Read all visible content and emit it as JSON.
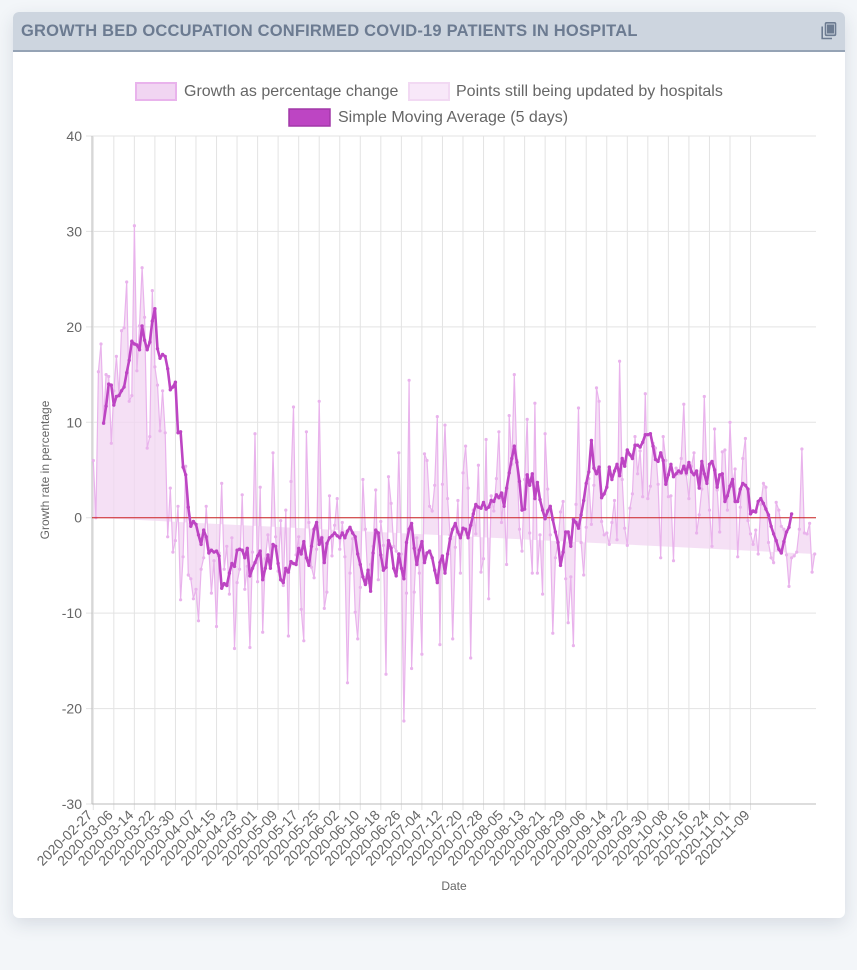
{
  "header": {
    "title": "GROWTH BED OCCUPATION CONFIRMED COVID-19 PATIENTS IN HOSPITAL",
    "copy_icon": "copy-icon"
  },
  "colors": {
    "sma": "#bd45c3",
    "growth_fill": "#f1d5f2",
    "growth_line": "#e9b3ec",
    "updating_fill": "#f8e8f9",
    "zero_line": "#cc2222",
    "grid": "#e3e3e3"
  },
  "chart_data": {
    "type": "line",
    "title": "",
    "xlabel": "Date",
    "ylabel": "Growth rate in percentage",
    "ylim": [
      -30,
      40
    ],
    "yticks": [
      -30,
      -20,
      -10,
      0,
      10,
      20,
      30,
      40
    ],
    "legend": {
      "placement": "top",
      "items": [
        "Growth as percentage change",
        "Points still being updated by hospitals",
        "Simple Moving Average (5 days)"
      ]
    },
    "x_start": "2020-02-27",
    "tick_labels": [
      "2020-02-27",
      "2020-03-06",
      "2020-03-14",
      "2020-03-22",
      "2020-03-30",
      "2020-04-07",
      "2020-04-15",
      "2020-04-23",
      "2020-05-01",
      "2020-05-09",
      "2020-05-17",
      "2020-05-25",
      "2020-06-02",
      "2020-06-10",
      "2020-06-18",
      "2020-06-26",
      "2020-07-04",
      "2020-07-12",
      "2020-07-20",
      "2020-07-28",
      "2020-08-05",
      "2020-08-13",
      "2020-08-21",
      "2020-08-29",
      "2020-09-06",
      "2020-09-14",
      "2020-09-22",
      "2020-09-30",
      "2020-10-08",
      "2020-10-16",
      "2020-10-24",
      "2020-11-01",
      "2020-11-09"
    ],
    "series": [
      {
        "name": "Growth as percentage change",
        "values": [
          6.0,
          0.0,
          15.3,
          18.2,
          10.0,
          15.0,
          14.8,
          7.8,
          13.3,
          16.9,
          12.9,
          19.6,
          19.9,
          24.7,
          12.2,
          12.8,
          30.6,
          15.4,
          20.1,
          26.2,
          21.0,
          7.3,
          8.5,
          23.8,
          15.8,
          13.9,
          9.1,
          13.3,
          8.9,
          -2.0,
          3.1,
          -3.6,
          -2.4,
          1.2,
          -8.6,
          -4.1,
          5.4,
          -6.0,
          -6.4,
          -8.5,
          -7.5,
          -10.8,
          -5.4,
          -4.2,
          1.2,
          -3.2,
          -7.9,
          -4.5,
          -11.4,
          -3.7,
          3.6,
          -5.4,
          -3.0,
          -8.0,
          -2.1,
          -13.7,
          -6.8,
          -5.4,
          2.4,
          -7.5,
          -5.1,
          -13.6,
          -3.6,
          8.8,
          -6.7,
          3.2,
          -12.0,
          -4.3,
          -1.8,
          -4.1,
          6.8,
          -2.0,
          -5.6,
          -0.3,
          -7.1,
          0.8,
          -12.4,
          3.8,
          11.6,
          -3.9,
          -2.0,
          -9.6,
          -12.9,
          9.0,
          -0.5,
          -5.2,
          -6.3,
          -3.3,
          12.2,
          -2.0,
          -9.5,
          -7.8,
          2.3,
          -4.0,
          -0.8,
          2.0,
          -3.3,
          -0.5,
          -4.1,
          -17.3,
          -5.8,
          -2.2,
          -9.9,
          -12.7,
          -7.3,
          4.0,
          -1.2,
          -6.8,
          -4.9,
          -3.0,
          2.9,
          -6.5,
          -0.4,
          -2.9,
          -16.4,
          4.3,
          1.5,
          -3.0,
          -3.5,
          6.8,
          -3.8,
          -21.3,
          -7.9,
          14.4,
          -15.8,
          -7.8,
          -2.1,
          -5.8,
          -14.3,
          6.7,
          6.0,
          1.2,
          0.7,
          3.4,
          10.6,
          -13.3,
          3.5,
          9.7,
          2.0,
          -1.8,
          -12.7,
          -3.1,
          1.8,
          -5.8,
          4.7,
          7.5,
          3.1,
          -14.7,
          0.8,
          -1.7,
          5.5,
          -5.7,
          -4.3,
          8.2,
          -8.5,
          2.3,
          0.7,
          4.1,
          9.0,
          -0.5,
          2.5,
          -4.9,
          10.7,
          5.6,
          15.0,
          6.0,
          -1.2,
          -3.5,
          4.0,
          10.3,
          -1.6,
          -5.8,
          12.0,
          -5.8,
          -1.8,
          -8.0,
          8.8,
          3.0,
          -1.8,
          -12.1,
          -4.2,
          -2.6,
          0.6,
          1.7,
          -6.4,
          -11.0,
          -6.2,
          -13.4,
          1.4,
          11.5,
          -2.6,
          -6.0,
          -1.0,
          4.1,
          -0.7,
          3.4,
          13.6,
          12.2,
          -0.4,
          -1.8,
          -1.6,
          -2.8,
          -0.5,
          1.8,
          -2.3,
          16.4,
          4.0,
          -1.1,
          -2.9,
          1.0,
          2.5,
          8.5,
          4.6,
          7.0,
          2.2,
          13.0,
          2.0,
          3.3,
          7.8,
          7.3,
          3.5,
          -4.2,
          8.5,
          6.0,
          2.2,
          2.3,
          -4.5,
          5.2,
          4.6,
          6.2,
          11.9,
          4.5,
          2.0,
          5.4,
          6.8,
          -1.6,
          0.3,
          3.0,
          12.7,
          4.3,
          0.8,
          -3.0,
          9.3,
          2.9,
          -1.5,
          6.9,
          7.1,
          0.8,
          10.0,
          3.3,
          5.1,
          -4.1,
          1.1,
          6.2,
          8.3,
          -0.3,
          -1.7,
          -2.8,
          -1.3,
          -3.8,
          1.4,
          3.6,
          3.2,
          -2.6,
          -4.2,
          -4.7,
          1.6,
          0.8,
          -0.9,
          -1.2,
          -3.9,
          -7.2,
          -4.2,
          -4.0,
          -3.6,
          -1.2,
          7.2,
          -1.6,
          -1.7,
          -0.6,
          -5.7,
          -3.8
        ],
        "updating_from_index": 287
      },
      {
        "name": "Simple Moving Average (5 days)",
        "values": [
          null,
          null,
          null,
          null,
          9.9,
          11.7,
          14.0,
          13.9,
          11.8,
          12.7,
          12.8,
          13.3,
          13.7,
          15.2,
          16.5,
          18.5,
          18.2,
          18.1,
          17.6,
          20.1,
          18.6,
          17.6,
          18.4,
          20.6,
          21.9,
          17.7,
          16.7,
          17.1,
          16.9,
          15.6,
          13.4,
          13.7,
          14.2,
          8.9,
          9.0,
          5.3,
          4.5,
          1.1,
          -0.9,
          -0.4,
          -0.7,
          -1.8,
          -2.8,
          -1.3,
          -2.0,
          -3.7,
          -3.4,
          -3.6,
          -3.5,
          -4.0,
          -7.4,
          -6.9,
          -7.1,
          -5.8,
          -4.8,
          -5.1,
          -3.4,
          -3.3,
          -3.4,
          -4.2,
          -3.2,
          -6.1,
          -5.3,
          -4.7,
          -4.0,
          -3.5,
          -6.5,
          -5.3,
          -3.9,
          -5.3,
          -2.8,
          -3.0,
          -4.8,
          -6.5,
          -6.8,
          -5.3,
          -5.7,
          -4.6,
          -4.8,
          -4.9,
          -3.2,
          -3.8,
          -2.5,
          -4.2,
          -5.0,
          -3.0,
          -1.2,
          -0.5,
          -2.8,
          -2.1,
          -4.7,
          -2.7,
          -2.1,
          -1.9,
          -1.6,
          -1.9,
          -2.1,
          -1.6,
          -2.1,
          -1.4,
          -1.0,
          -1.6,
          -2.0,
          -3.8,
          -4.9,
          -6.2,
          -7.0,
          -5.5,
          -7.7,
          -3.7,
          -1.3,
          -1.6,
          -3.9,
          -5.5,
          -5.2,
          -2.4,
          -3.2,
          -5.3,
          -6.1,
          -3.8,
          -5.3,
          -6.4,
          -2.6,
          -1.2,
          -0.6,
          -3.2,
          -4.9,
          -3.4,
          -2.5,
          -4.7,
          -3.7,
          -3.5,
          -4.2,
          -5.5,
          -6.8,
          -4.7,
          -4.0,
          -5.8,
          -3.8,
          -2.2,
          -1.2,
          -0.6,
          -1.5,
          -2.1,
          -1.1,
          -1.2,
          -2.1,
          -0.8,
          0.4,
          1.4,
          1.1,
          1.0,
          1.6,
          0.9,
          1.1,
          1.8,
          1.7,
          2.4,
          2.1,
          2.6,
          1.2,
          3.1,
          4.7,
          6.2,
          7.5,
          5.8,
          3.8,
          0.8,
          0.9,
          4.5,
          3.4,
          4.6,
          2.0,
          3.7,
          1.9,
          0.8,
          -0.1,
          0.7,
          1.2,
          -0.2,
          -1.5,
          -2.6,
          -5.0,
          -3.6,
          -1.5,
          -1.5,
          -3.0,
          -0.2,
          -0.5,
          -1.1,
          0.3,
          1.8,
          3.6,
          4.8,
          8.1,
          5.2,
          4.6,
          5.3,
          2.1,
          2.5,
          3.2,
          5.3,
          4.0,
          4.9,
          5.6,
          4.4,
          6.2,
          5.4,
          7.1,
          6.6,
          6.2,
          7.6,
          7.6,
          7.4,
          7.9,
          8.7,
          8.7,
          8.8,
          7.5,
          6.1,
          5.9,
          6.8,
          6.0,
          3.5,
          4.5,
          5.6,
          4.3,
          4.6,
          4.9,
          4.7,
          5.4,
          4.7,
          5.8,
          4.8,
          4.5,
          4.9,
          3.1,
          5.9,
          4.6,
          3.6,
          5.6,
          5.9,
          5.0,
          3.2,
          4.5,
          4.6,
          1.7,
          2.3,
          3.3,
          4.0,
          1.7,
          1.7,
          3.0,
          3.6,
          3.4,
          3.0,
          0.4,
          0.7,
          0.6,
          1.7,
          2.0,
          1.5,
          0.9,
          0.3,
          -0.9,
          -1.7,
          -2.4,
          -3.3,
          -3.7,
          -2.5,
          -1.5,
          -1.0,
          0.4
        ]
      }
    ]
  }
}
